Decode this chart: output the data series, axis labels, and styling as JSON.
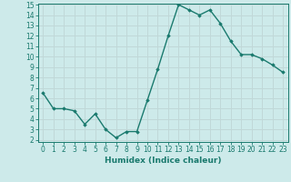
{
  "x": [
    0,
    1,
    2,
    3,
    4,
    5,
    6,
    7,
    8,
    9,
    10,
    11,
    12,
    13,
    14,
    15,
    16,
    17,
    18,
    19,
    20,
    21,
    22,
    23
  ],
  "y": [
    6.5,
    5.0,
    5.0,
    4.8,
    3.5,
    4.5,
    3.0,
    2.2,
    2.8,
    2.8,
    5.8,
    8.8,
    12.0,
    15.0,
    14.5,
    14.0,
    14.5,
    13.2,
    11.5,
    10.2,
    10.2,
    9.8,
    9.2,
    8.5
  ],
  "xlabel": "Humidex (Indice chaleur)",
  "ylim": [
    2,
    15
  ],
  "xlim": [
    -0.5,
    23.5
  ],
  "yticks": [
    2,
    3,
    4,
    5,
    6,
    7,
    8,
    9,
    10,
    11,
    12,
    13,
    14,
    15
  ],
  "xticks": [
    0,
    1,
    2,
    3,
    4,
    5,
    6,
    7,
    8,
    9,
    10,
    11,
    12,
    13,
    14,
    15,
    16,
    17,
    18,
    19,
    20,
    21,
    22,
    23
  ],
  "line_color": "#1a7a6e",
  "marker": "D",
  "marker_size": 1.8,
  "bg_color": "#cdeaea",
  "grid_color": "#c0d8d8",
  "xlabel_fontsize": 6.5,
  "tick_fontsize": 5.5,
  "linewidth": 1.0
}
